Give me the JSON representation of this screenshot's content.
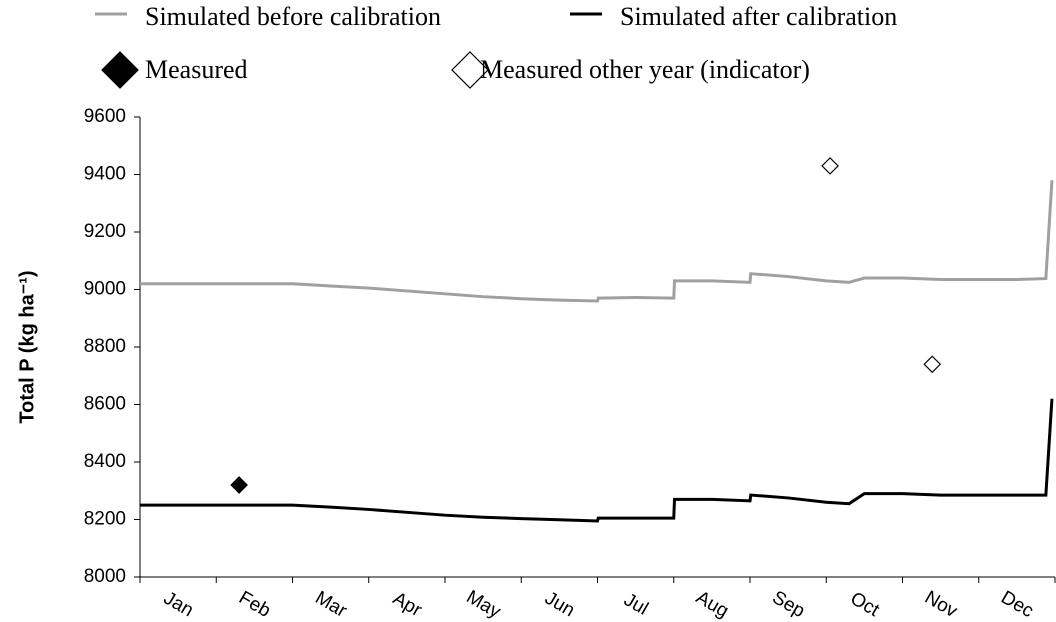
{
  "chart_data": {
    "type": "line",
    "y_label": "Total P (kg ha⁻¹)",
    "categories": [
      "Jan",
      "Feb",
      "Mar",
      "Apr",
      "May",
      "Jun",
      "Jul",
      "Aug",
      "Sep",
      "Oct",
      "Nov",
      "Dec"
    ],
    "xlim": [
      0,
      12
    ],
    "ylim": [
      8000,
      9600
    ],
    "yticks": [
      8000,
      8200,
      8400,
      8600,
      8800,
      9000,
      9200,
      9400,
      9600
    ],
    "series": [
      {
        "name": "Simulated before calibration",
        "color": "#a0a0a0",
        "marker": "line",
        "x": [
          0,
          2,
          2.5,
          3,
          3.5,
          4,
          4.5,
          5,
          5.5,
          6,
          6.01,
          6.5,
          7,
          7.01,
          7.5,
          8,
          8.01,
          8.5,
          9,
          9.3,
          9.5,
          10,
          10.5,
          11,
          11.5,
          11.88,
          11.96
        ],
        "values": [
          9020,
          9020,
          9012,
          9005,
          8995,
          8985,
          8975,
          8968,
          8963,
          8960,
          8970,
          8972,
          8970,
          9030,
          9030,
          9025,
          9055,
          9045,
          9030,
          9025,
          9040,
          9040,
          9035,
          9035,
          9035,
          9038,
          9380
        ]
      },
      {
        "name": "Simulated after calibration",
        "color": "#000000",
        "marker": "line",
        "x": [
          0,
          2,
          2.5,
          3,
          3.5,
          4,
          4.5,
          5,
          5.5,
          6,
          6.01,
          6.5,
          7,
          7.01,
          7.5,
          8,
          8.01,
          8.5,
          9,
          9.3,
          9.5,
          10,
          10.5,
          11,
          11.5,
          11.88,
          11.96
        ],
        "values": [
          8250,
          8250,
          8243,
          8235,
          8225,
          8215,
          8208,
          8203,
          8199,
          8195,
          8205,
          8205,
          8205,
          8270,
          8270,
          8265,
          8285,
          8275,
          8260,
          8255,
          8290,
          8290,
          8285,
          8285,
          8285,
          8285,
          8620
        ]
      },
      {
        "name": "Measured",
        "color": "#000000",
        "marker": "diamond-filled",
        "x": [
          1.3
        ],
        "values": [
          8320
        ]
      },
      {
        "name": "Measured other year (indicator)",
        "color": "#000000",
        "marker": "diamond-open",
        "x": [
          9.05,
          10.39
        ],
        "values": [
          9430,
          8740
        ]
      }
    ]
  }
}
